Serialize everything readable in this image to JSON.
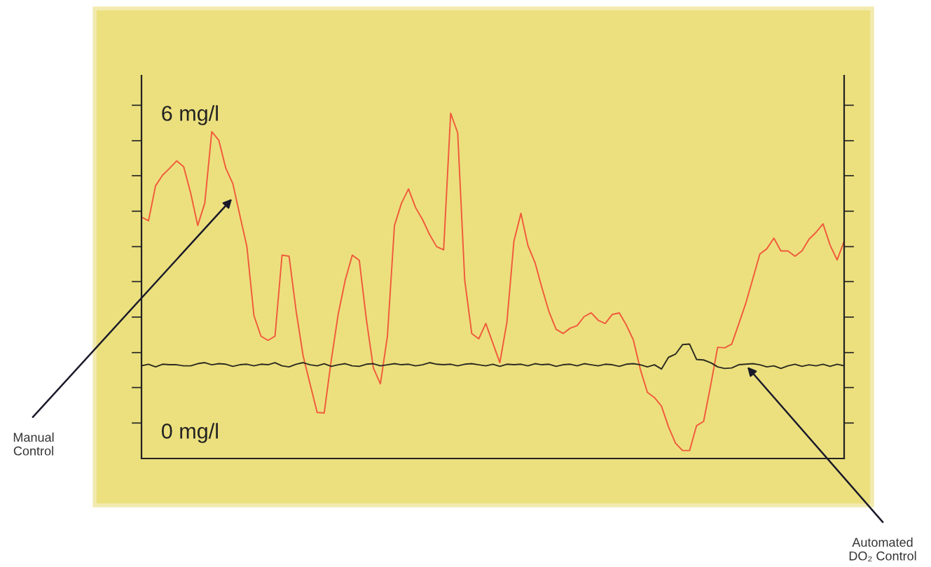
{
  "chart_data": {
    "type": "line",
    "categories": [
      null,
      null,
      null,
      null,
      null,
      null,
      null,
      null,
      null,
      null,
      null,
      null,
      null,
      null,
      null,
      null,
      null,
      null,
      null,
      null,
      null,
      null,
      null,
      null,
      null,
      null,
      null,
      null,
      null,
      null,
      null,
      null,
      null,
      null,
      null,
      null,
      null,
      null,
      null,
      null,
      null,
      null,
      null,
      null,
      null,
      null,
      null,
      null,
      null,
      null,
      null,
      null,
      null,
      null,
      null,
      null,
      null,
      null,
      null,
      null,
      null,
      null,
      null,
      null,
      null,
      null,
      null,
      null,
      null,
      null,
      null,
      null,
      null,
      null,
      null,
      null,
      null,
      null,
      null,
      null,
      null,
      null,
      null,
      null,
      null,
      null,
      null,
      null,
      null,
      null,
      null,
      null,
      null,
      null,
      null,
      null,
      null,
      null,
      null,
      null,
      null
    ],
    "series": [
      {
        "color": "#f05a3c",
        "values": [
          3.89,
          3.82,
          4.48,
          4.68,
          4.81,
          4.95,
          4.84,
          4.34,
          3.73,
          4.15,
          5.5,
          5.34,
          4.81,
          4.52,
          3.92,
          3.33,
          2.03,
          1.64,
          1.56,
          1.64,
          3.17,
          3.15,
          2.12,
          1.27,
          0.73,
          0.2,
          0.19,
          1.18,
          2.06,
          2.7,
          3.17,
          3.07,
          1.96,
          1.04,
          0.74,
          1.64,
          3.73,
          4.15,
          4.42,
          4.07,
          3.84,
          3.56,
          3.33,
          3.27,
          5.85,
          5.48,
          2.7,
          1.69,
          1.59,
          1.88,
          1.51,
          1.14,
          1.9,
          3.43,
          3.96,
          3.35,
          3.03,
          2.55,
          2.1,
          1.77,
          1.69,
          1.79,
          1.84,
          2.01,
          2.08,
          1.94,
          1.88,
          2.05,
          2.08,
          1.85,
          1.57,
          1.01,
          0.58,
          0.48,
          0.32,
          -0.07,
          -0.38,
          -0.52,
          -0.52,
          -0.05,
          0.03,
          0.71,
          1.43,
          1.42,
          1.49,
          1.87,
          2.26,
          2.72,
          3.19,
          3.29,
          3.49,
          3.25,
          3.25,
          3.15,
          3.25,
          3.47,
          3.6,
          3.76,
          3.36,
          3.08,
          3.43
        ]
      },
      {
        "color": "#2a2a20",
        "values": [
          1.08,
          1.11,
          1.06,
          1.11,
          1.1,
          1.1,
          1.08,
          1.08,
          1.12,
          1.14,
          1.1,
          1.12,
          1.11,
          1.07,
          1.1,
          1.11,
          1.08,
          1.11,
          1.1,
          1.14,
          1.08,
          1.06,
          1.11,
          1.14,
          1.1,
          1.08,
          1.12,
          1.07,
          1.1,
          1.12,
          1.08,
          1.07,
          1.11,
          1.12,
          1.08,
          1.1,
          1.12,
          1.1,
          1.11,
          1.08,
          1.1,
          1.14,
          1.11,
          1.1,
          1.11,
          1.08,
          1.11,
          1.12,
          1.1,
          1.08,
          1.11,
          1.07,
          1.11,
          1.1,
          1.11,
          1.08,
          1.12,
          1.1,
          1.11,
          1.07,
          1.1,
          1.11,
          1.08,
          1.12,
          1.1,
          1.08,
          1.11,
          1.1,
          1.07,
          1.11,
          1.12,
          1.1,
          1.06,
          1.1,
          1.02,
          1.24,
          1.3,
          1.48,
          1.49,
          1.2,
          1.19,
          1.14,
          1.06,
          1.03,
          1.04,
          1.1,
          1.11,
          1.12,
          1.1,
          1.06,
          1.08,
          1.03,
          1.08,
          1.11,
          1.07,
          1.1,
          1.08,
          1.11,
          1.07,
          1.11,
          1.08
        ]
      }
    ],
    "ylim": [
      -0.67,
      6.56
    ],
    "yticks": [
      {
        "value": 0,
        "label": "0 mg/l"
      },
      {
        "value": 0.67,
        "label": null
      },
      {
        "value": 1.33,
        "label": null
      },
      {
        "value": 2,
        "label": null
      },
      {
        "value": 2.67,
        "label": null
      },
      {
        "value": 3.33,
        "label": null
      },
      {
        "value": 4,
        "label": null
      },
      {
        "value": 4.67,
        "label": null
      },
      {
        "value": 5.33,
        "label": null
      },
      {
        "value": 6,
        "label": "6 mg/l"
      }
    ],
    "tick_labels": "y",
    "grid": false,
    "legend": false,
    "marker": "none",
    "line_style": "solid",
    "annotations": [
      "Manual\nControl",
      "Automated\nDO₂ Control"
    ]
  }
}
